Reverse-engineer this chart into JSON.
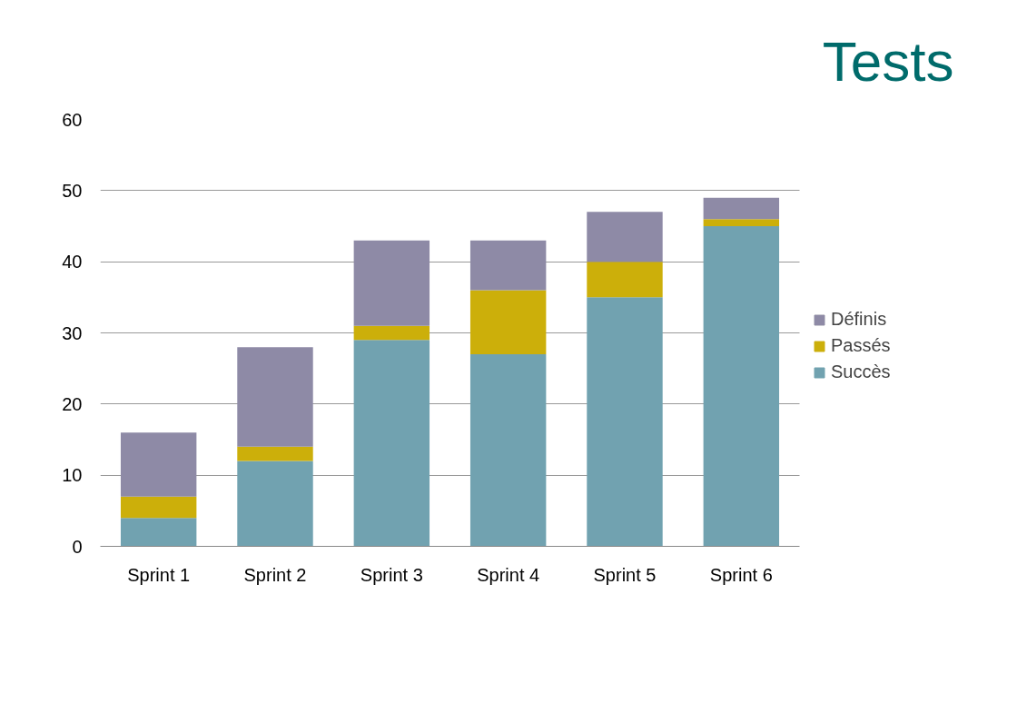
{
  "chart_data": {
    "type": "bar",
    "title": "Tests",
    "stacked": true,
    "categories": [
      "Sprint 1",
      "Sprint 2",
      "Sprint 3",
      "Sprint 4",
      "Sprint 5",
      "Sprint 6"
    ],
    "series": [
      {
        "name": "Succès",
        "color": "#71a2b0",
        "values": [
          4,
          12,
          29,
          27,
          35,
          45
        ]
      },
      {
        "name": "Passés",
        "color": "#ccaf0a",
        "values": [
          3,
          2,
          2,
          9,
          5,
          1
        ]
      },
      {
        "name": "Définis",
        "color": "#8e8aa6",
        "values": [
          9,
          14,
          12,
          7,
          7,
          3
        ]
      }
    ],
    "ylim": [
      0,
      60
    ],
    "yticks": [
      0,
      10,
      20,
      30,
      40,
      50,
      60
    ],
    "grid": "y",
    "legend": "right"
  }
}
